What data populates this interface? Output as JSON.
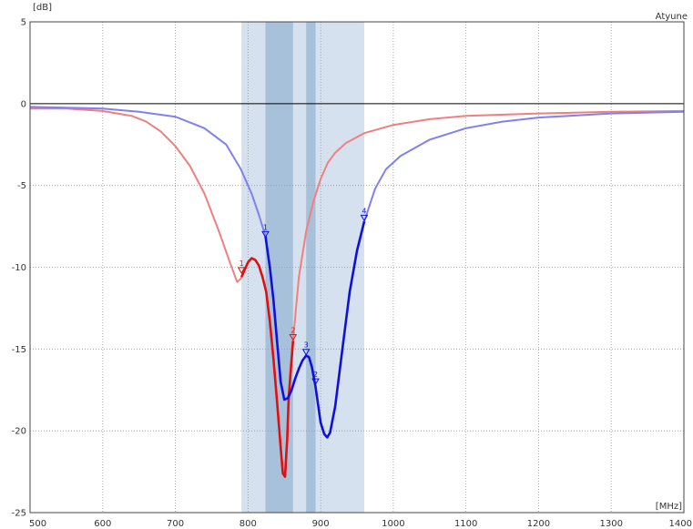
{
  "chart_data": {
    "type": "line",
    "title": "",
    "corner_label": "Atyune",
    "xlabel": "[MHz]",
    "ylabel": "[dB]",
    "xlim": [
      500,
      1400
    ],
    "ylim": [
      -25,
      5
    ],
    "x_ticks": [
      500,
      600,
      700,
      800,
      900,
      1000,
      1100,
      1200,
      1300,
      1400
    ],
    "y_ticks": [
      5,
      0,
      -5,
      -10,
      -15,
      -20,
      -25
    ],
    "grid": true,
    "legend": "none",
    "reference_line": 0,
    "bands": [
      {
        "x0": 791,
        "x1": 960,
        "color": "#d5e1ee"
      },
      {
        "x0": 824,
        "x1": 862,
        "color": "#a8c1da"
      },
      {
        "x0": 880,
        "x1": 893,
        "color": "#a8c1da"
      }
    ],
    "series": [
      {
        "color": "#f08080",
        "highlight_color": "#e01010",
        "highlight_range": [
          791,
          862
        ],
        "points": [
          [
            500,
            -0.3
          ],
          [
            550,
            -0.3
          ],
          [
            600,
            -0.45
          ],
          [
            640,
            -0.75
          ],
          [
            660,
            -1.1
          ],
          [
            680,
            -1.7
          ],
          [
            700,
            -2.6
          ],
          [
            720,
            -3.8
          ],
          [
            740,
            -5.5
          ],
          [
            760,
            -7.8
          ],
          [
            775,
            -9.7
          ],
          [
            785,
            -10.9
          ],
          [
            790,
            -10.7
          ],
          [
            795,
            -10.2
          ],
          [
            800,
            -9.7
          ],
          [
            805,
            -9.45
          ],
          [
            810,
            -9.55
          ],
          [
            815,
            -9.9
          ],
          [
            820,
            -10.6
          ],
          [
            825,
            -11.5
          ],
          [
            830,
            -13.3
          ],
          [
            835,
            -15.6
          ],
          [
            840,
            -18.2
          ],
          [
            845,
            -21.0
          ],
          [
            848,
            -22.6
          ],
          [
            851,
            -22.8
          ],
          [
            854,
            -20.5
          ],
          [
            856,
            -18.0
          ],
          [
            859,
            -16.2
          ],
          [
            862,
            -14.5
          ],
          [
            870,
            -10.6
          ],
          [
            880,
            -7.8
          ],
          [
            890,
            -6.0
          ],
          [
            900,
            -4.6
          ],
          [
            910,
            -3.6
          ],
          [
            920,
            -3.0
          ],
          [
            935,
            -2.4
          ],
          [
            960,
            -1.8
          ],
          [
            1000,
            -1.3
          ],
          [
            1050,
            -0.95
          ],
          [
            1100,
            -0.75
          ],
          [
            1200,
            -0.6
          ],
          [
            1300,
            -0.5
          ],
          [
            1400,
            -0.45
          ]
        ]
      },
      {
        "color": "#8080f0",
        "highlight_color": "#1010dd",
        "highlight_range": [
          824,
          960
        ],
        "points": [
          [
            500,
            -0.2
          ],
          [
            550,
            -0.25
          ],
          [
            600,
            -0.3
          ],
          [
            650,
            -0.5
          ],
          [
            700,
            -0.8
          ],
          [
            740,
            -1.5
          ],
          [
            770,
            -2.5
          ],
          [
            790,
            -4.0
          ],
          [
            805,
            -5.5
          ],
          [
            815,
            -6.8
          ],
          [
            824,
            -8.1
          ],
          [
            830,
            -10.0
          ],
          [
            835,
            -12.0
          ],
          [
            840,
            -14.5
          ],
          [
            845,
            -17.0
          ],
          [
            850,
            -18.1
          ],
          [
            855,
            -18.0
          ],
          [
            860,
            -17.5
          ],
          [
            865,
            -16.8
          ],
          [
            870,
            -16.2
          ],
          [
            875,
            -15.7
          ],
          [
            880,
            -15.4
          ],
          [
            884,
            -15.5
          ],
          [
            888,
            -16.1
          ],
          [
            893,
            -17.3
          ],
          [
            900,
            -19.5
          ],
          [
            905,
            -20.2
          ],
          [
            909,
            -20.4
          ],
          [
            913,
            -20.1
          ],
          [
            920,
            -18.5
          ],
          [
            930,
            -15.0
          ],
          [
            940,
            -11.5
          ],
          [
            950,
            -9.0
          ],
          [
            960,
            -7.2
          ],
          [
            975,
            -5.2
          ],
          [
            990,
            -4.0
          ],
          [
            1010,
            -3.2
          ],
          [
            1050,
            -2.2
          ],
          [
            1100,
            -1.5
          ],
          [
            1150,
            -1.1
          ],
          [
            1200,
            -0.85
          ],
          [
            1300,
            -0.6
          ],
          [
            1400,
            -0.5
          ]
        ]
      }
    ],
    "markers": [
      {
        "label": "1",
        "series": 0,
        "x": 791,
        "y": -10.3,
        "color": "#e01010"
      },
      {
        "label": "2",
        "series": 0,
        "x": 862,
        "y": -14.4,
        "color": "#e01010"
      },
      {
        "label": "1",
        "series": 1,
        "x": 824,
        "y": -8.1,
        "color": "#1010dd"
      },
      {
        "label": "3",
        "series": 1,
        "x": 880,
        "y": -15.3,
        "color": "#1010dd"
      },
      {
        "label": "2",
        "series": 1,
        "x": 893,
        "y": -17.1,
        "color": "#1010dd"
      },
      {
        "label": "4",
        "series": 1,
        "x": 960,
        "y": -7.1,
        "color": "#1010dd"
      }
    ]
  }
}
